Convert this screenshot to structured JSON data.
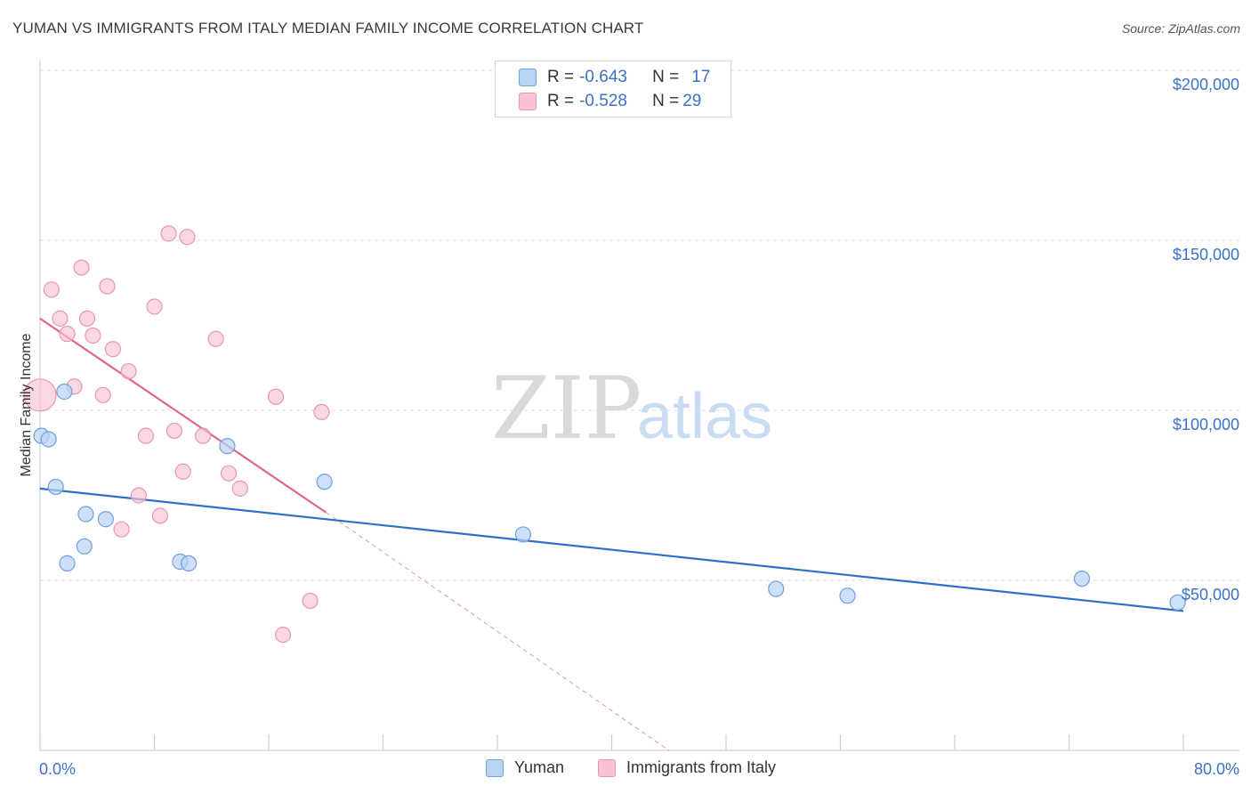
{
  "title": "YUMAN VS IMMIGRANTS FROM ITALY MEDIAN FAMILY INCOME CORRELATION CHART",
  "source": "Source: ZipAtlas.com",
  "watermark": {
    "zip": "ZIP",
    "atlas": "atlas"
  },
  "legend": {
    "rows": [
      {
        "r_label": "R = ",
        "r_value": "-0.643",
        "n_label": "N = ",
        "n_value": "17"
      },
      {
        "r_label": "R = ",
        "r_value": "-0.528",
        "n_label": "N = ",
        "n_value": "29"
      }
    ]
  },
  "bottom_legend": {
    "yuman": "Yuman",
    "italy": "Immigrants from Italy"
  },
  "colors": {
    "yuman_fill": "#b8d3f3",
    "yuman_stroke": "#6f9fdc",
    "yuman_line": "#2f6fcb",
    "italy_fill": "#f7c3d3",
    "italy_stroke": "#e896b0",
    "italy_line": "#e0658e",
    "axis_text": "#3a72c4",
    "grid": "#dddddd"
  },
  "chart_data": {
    "type": "scatter",
    "title": "YUMAN VS IMMIGRANTS FROM ITALY MEDIAN FAMILY INCOME CORRELATION CHART",
    "xlabel": "",
    "ylabel": "Median Family Income",
    "xlim": [
      0,
      80
    ],
    "ylim": [
      0,
      210000
    ],
    "x_tick_labels": [
      "0.0%",
      "80.0%"
    ],
    "y_ticks": [
      50000,
      100000,
      150000,
      200000
    ],
    "y_tick_labels": [
      "$50,000",
      "$100,000",
      "$150,000",
      "$200,000"
    ],
    "grid": true,
    "legend_position": "top-center",
    "series": [
      {
        "name": "Yuman",
        "points": [
          [
            0.1,
            92500
          ],
          [
            0.6,
            91500
          ],
          [
            1.7,
            105500
          ],
          [
            1.1,
            77500
          ],
          [
            3.2,
            69500
          ],
          [
            4.6,
            68000
          ],
          [
            3.1,
            60000
          ],
          [
            1.9,
            55000
          ],
          [
            9.8,
            55500
          ],
          [
            10.4,
            55000
          ],
          [
            13.1,
            89500
          ],
          [
            19.9,
            79000
          ],
          [
            33.8,
            63500
          ],
          [
            51.5,
            47500
          ],
          [
            56.5,
            45500
          ],
          [
            72.9,
            50500
          ],
          [
            79.6,
            43500
          ]
        ],
        "trend": [
          [
            0,
            77000
          ],
          [
            80,
            41000
          ]
        ]
      },
      {
        "name": "Immigrants from Italy",
        "points": [
          [
            0.0,
            104500
          ],
          [
            0.8,
            135500
          ],
          [
            1.4,
            127000
          ],
          [
            1.9,
            122500
          ],
          [
            2.4,
            107000
          ],
          [
            2.9,
            142000
          ],
          [
            3.3,
            127000
          ],
          [
            3.7,
            122000
          ],
          [
            4.4,
            104500
          ],
          [
            4.7,
            136500
          ],
          [
            5.1,
            118000
          ],
          [
            6.2,
            111500
          ],
          [
            6.9,
            75000
          ],
          [
            5.7,
            65000
          ],
          [
            7.4,
            92500
          ],
          [
            8.0,
            130500
          ],
          [
            8.4,
            69000
          ],
          [
            9.0,
            152000
          ],
          [
            9.4,
            94000
          ],
          [
            10.0,
            82000
          ],
          [
            10.3,
            151000
          ],
          [
            11.4,
            92500
          ],
          [
            12.3,
            121000
          ],
          [
            13.2,
            81500
          ],
          [
            14.0,
            77000
          ],
          [
            16.5,
            104000
          ],
          [
            17.0,
            34000
          ],
          [
            18.9,
            44000
          ],
          [
            19.7,
            99500
          ]
        ],
        "trend": [
          [
            0,
            127000
          ],
          [
            20,
            70000
          ]
        ],
        "trend_extension": [
          [
            20,
            70000
          ],
          [
            44,
            0
          ]
        ]
      }
    ]
  }
}
